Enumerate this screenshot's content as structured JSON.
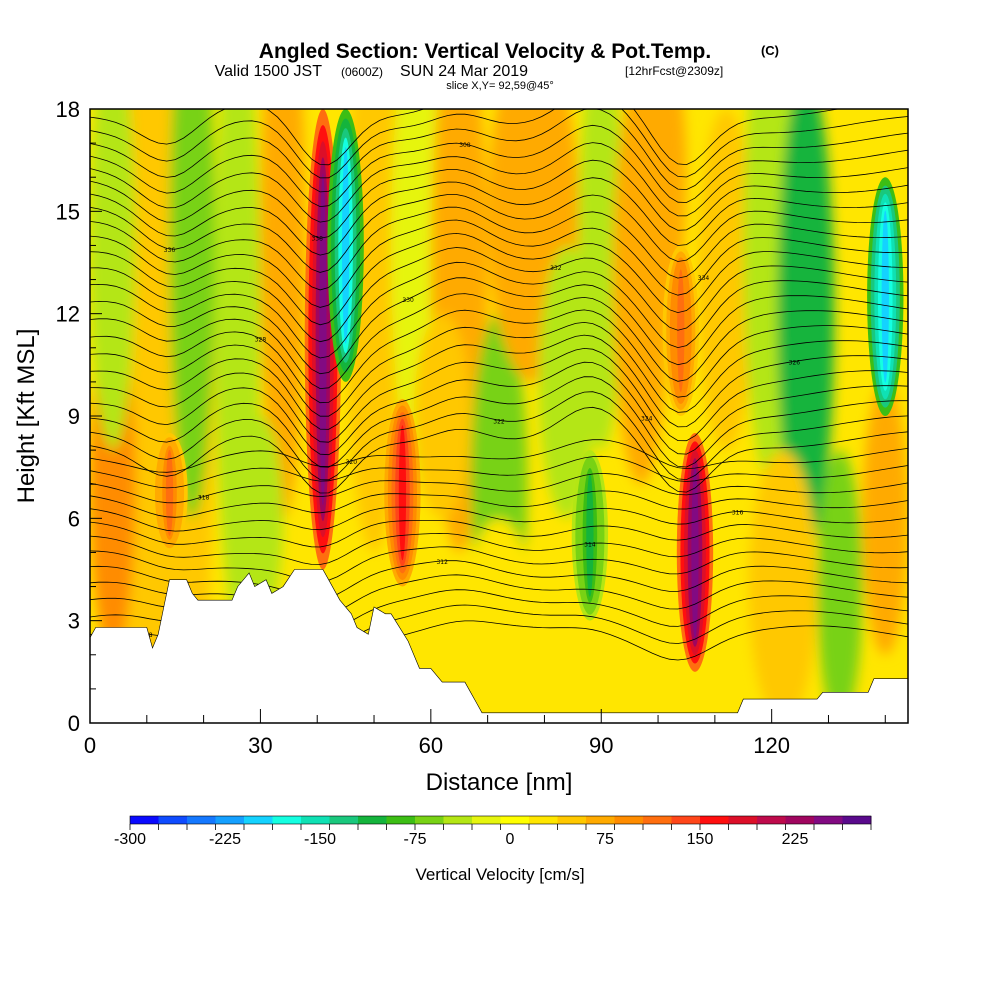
{
  "header": {
    "title": "Angled Section: Vertical Velocity & Pot.Temp.",
    "copyright": "(C)",
    "valid_prefix": "Valid 1500 JST",
    "valid_utc": "(0600Z)",
    "valid_date": "SUN 24 Mar 2019",
    "forecast": "[12hrFcst@2309z]",
    "slice": "slice X,Y= 92,59@45°"
  },
  "colorbar": {
    "label": "Vertical Velocity [cm/s]",
    "ticks": [
      "-300",
      "-225",
      "-150",
      "-75",
      "0",
      "75",
      "150",
      "225"
    ],
    "colors": [
      "#0a0aff",
      "#0f4bff",
      "#1478ff",
      "#14a0ff",
      "#14d2ff",
      "#14ffe1",
      "#0fe1b4",
      "#19c87d",
      "#14b43c",
      "#3cbe14",
      "#78d214",
      "#b4e614",
      "#e6f50f",
      "#ffff00",
      "#ffe600",
      "#ffc800",
      "#ffaa00",
      "#ff8c00",
      "#ff6e0f",
      "#ff4619",
      "#ff0f0f",
      "#dc0f28",
      "#be0a4b",
      "#a0055f",
      "#820a82",
      "#5a0a8c"
    ]
  },
  "chart_data": {
    "type": "heatmap",
    "title": "Angled Section: Vertical Velocity & Pot.Temp.",
    "xlabel": "Distance [nm]",
    "ylabel": "Height [Kft MSL]",
    "xlim": [
      0,
      144
    ],
    "ylim": [
      0,
      18
    ],
    "xticks": [
      "0",
      "30",
      "60",
      "90",
      "120"
    ],
    "yticks": [
      "0",
      "3",
      "6",
      "9",
      "12",
      "15",
      "18"
    ],
    "colorbar_label": "Vertical Velocity [cm/s]",
    "colorbar_range": [
      -300,
      262
    ],
    "features": [
      {
        "kind": "updraft",
        "x": 41,
        "ymin": 4.5,
        "ymax": 18,
        "peak_cms": 250
      },
      {
        "kind": "downdraft",
        "x": 45,
        "ymin": 10,
        "ymax": 18,
        "peak_cms": -190
      },
      {
        "kind": "updraft",
        "x": 55,
        "ymin": 4,
        "ymax": 9.5,
        "peak_cms": 160
      },
      {
        "kind": "updraft",
        "x": 106.5,
        "ymin": 1.5,
        "ymax": 8.5,
        "peak_cms": 250
      },
      {
        "kind": "updraft",
        "x": 104,
        "ymin": 9,
        "ymax": 14,
        "peak_cms": 120
      },
      {
        "kind": "downdraft",
        "x": 140,
        "ymin": 9,
        "ymax": 16,
        "peak_cms": -200
      },
      {
        "kind": "downdraft",
        "x": 88,
        "ymin": 3,
        "ymax": 8,
        "peak_cms": -100
      },
      {
        "kind": "updraft",
        "x": 14,
        "ymin": 5,
        "ymax": 8.5,
        "peak_cms": 110
      }
    ],
    "terrain_kft": [
      [
        0,
        2.5
      ],
      [
        1,
        2.8
      ],
      [
        10,
        2.8
      ],
      [
        11,
        2.2
      ],
      [
        12,
        2.6
      ],
      [
        13,
        3.4
      ],
      [
        14,
        4.2
      ],
      [
        17,
        4.2
      ],
      [
        18,
        3.8
      ],
      [
        19,
        3.6
      ],
      [
        25,
        3.6
      ],
      [
        26,
        4.0
      ],
      [
        28,
        4.4
      ],
      [
        29,
        4.0
      ],
      [
        31,
        4.2
      ],
      [
        32,
        3.8
      ],
      [
        34,
        4.0
      ],
      [
        36,
        4.5
      ],
      [
        41,
        4.5
      ],
      [
        42,
        4.2
      ],
      [
        44,
        3.6
      ],
      [
        46,
        3.2
      ],
      [
        47,
        2.8
      ],
      [
        49,
        2.6
      ],
      [
        50,
        3.4
      ],
      [
        52,
        3.2
      ],
      [
        53,
        3.2
      ],
      [
        56,
        2.4
      ],
      [
        58,
        1.6
      ],
      [
        60,
        1.6
      ],
      [
        62,
        1.2
      ],
      [
        66,
        1.2
      ],
      [
        67,
        0.9
      ],
      [
        68,
        0.6
      ],
      [
        69,
        0.3
      ],
      [
        74,
        0.3
      ],
      [
        75,
        0.3
      ],
      [
        95,
        0.3
      ],
      [
        96,
        0.3
      ],
      [
        114,
        0.3
      ],
      [
        115,
        0.7
      ],
      [
        128,
        0.7
      ],
      [
        129,
        0.9
      ],
      [
        137,
        0.9
      ],
      [
        138,
        1.3
      ],
      [
        144,
        1.3
      ]
    ],
    "theta_label_values": [
      "308",
      "310",
      "312",
      "314",
      "316",
      "318",
      "320",
      "322",
      "324",
      "326",
      "328",
      "330",
      "332",
      "334",
      "336",
      "338"
    ]
  }
}
